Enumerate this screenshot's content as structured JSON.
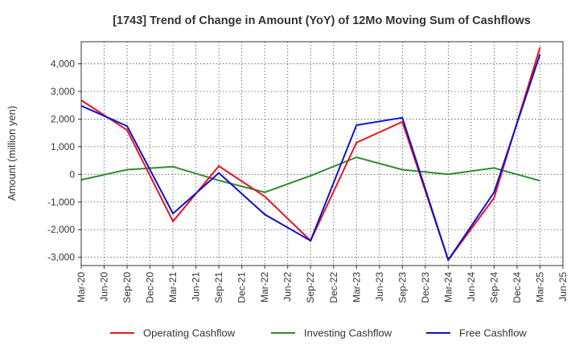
{
  "chart_data": {
    "type": "line",
    "title": "[1743]  Trend of Change in Amount (YoY) of 12Mo Moving Sum of Cashflows",
    "xlabel": "",
    "ylabel": "Amount (million yen)",
    "ylim": [
      -3300,
      4800
    ],
    "yticks": [
      -3000,
      -2000,
      -1000,
      0,
      1000,
      2000,
      3000,
      4000
    ],
    "ytick_labels": [
      "-3,000",
      "-2,000",
      "-1,000",
      "0",
      "1,000",
      "2,000",
      "3,000",
      "4,000"
    ],
    "categories": [
      "Mar-20",
      "Jun-20",
      "Sep-20",
      "Dec-20",
      "Mar-21",
      "Jun-21",
      "Sep-21",
      "Dec-21",
      "Mar-22",
      "Jun-22",
      "Sep-22",
      "Dec-22",
      "Mar-23",
      "Jun-23",
      "Sep-23",
      "Dec-23",
      "Mar-24",
      "Jun-24",
      "Sep-24",
      "Dec-24",
      "Mar-25",
      "Jun-25"
    ],
    "grid": true,
    "legend_position": "bottom",
    "series": [
      {
        "name": "Operating Cashflow",
        "color": "#e8141e",
        "points": [
          [
            0,
            2680
          ],
          [
            2,
            1600
          ],
          [
            4,
            -1700
          ],
          [
            6,
            300
          ],
          [
            8,
            -800
          ],
          [
            10,
            -2400
          ],
          [
            12,
            1150
          ],
          [
            14,
            1900
          ],
          [
            16,
            -3100
          ],
          [
            18,
            -850
          ],
          [
            20,
            4600
          ]
        ]
      },
      {
        "name": "Investing Cashflow",
        "color": "#2e8b2e",
        "points": [
          [
            0,
            -200
          ],
          [
            2,
            170
          ],
          [
            4,
            280
          ],
          [
            6,
            -220
          ],
          [
            8,
            -650
          ],
          [
            10,
            -50
          ],
          [
            12,
            620
          ],
          [
            14,
            170
          ],
          [
            16,
            0
          ],
          [
            18,
            230
          ],
          [
            20,
            -230
          ]
        ]
      },
      {
        "name": "Free Cashflow",
        "color": "#1010d0",
        "points": [
          [
            0,
            2480
          ],
          [
            2,
            1750
          ],
          [
            4,
            -1420
          ],
          [
            6,
            50
          ],
          [
            8,
            -1450
          ],
          [
            10,
            -2400
          ],
          [
            12,
            1780
          ],
          [
            14,
            2050
          ],
          [
            16,
            -3100
          ],
          [
            18,
            -650
          ],
          [
            20,
            4350
          ]
        ]
      }
    ]
  }
}
